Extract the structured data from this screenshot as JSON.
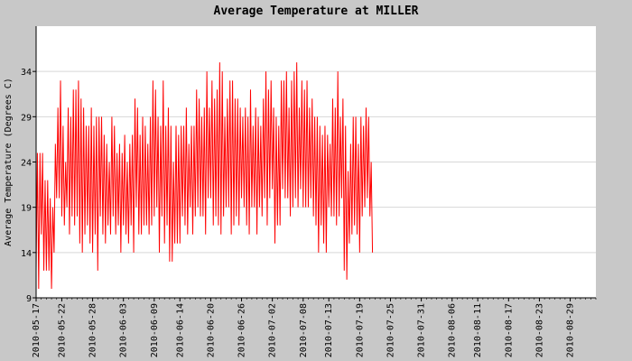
{
  "chart_data": {
    "type": "line",
    "title": "Average Temperature at MILLER",
    "xlabel": "",
    "ylabel": "Average Temperature (Degrees C)",
    "ylim": [
      9,
      39
    ],
    "yticks": [
      9,
      14,
      19,
      24,
      29,
      34
    ],
    "xlim": [
      "2010-05-17",
      "2010-09-03"
    ],
    "xticks": [
      "2010-05-17",
      "2010-05-22",
      "2010-05-28",
      "2010-06-03",
      "2010-06-09",
      "2010-06-14",
      "2010-06-20",
      "2010-06-26",
      "2010-07-02",
      "2010-07-08",
      "2010-07-13",
      "2010-07-19",
      "2010-07-25",
      "2010-07-31",
      "2010-08-06",
      "2010-08-11",
      "2010-08-17",
      "2010-08-23",
      "2010-08-29"
    ],
    "grid": true,
    "line_color": "#ff0000",
    "series": [
      {
        "name": "",
        "points_per_day": 4,
        "values": [
          12,
          25,
          10,
          25,
          16,
          25,
          12,
          22,
          12,
          22,
          12,
          20,
          10,
          19,
          14,
          26,
          20,
          30,
          20,
          33,
          18,
          28,
          17,
          24,
          19,
          30,
          16,
          29,
          18,
          32,
          17,
          32,
          18,
          33,
          15,
          31,
          14,
          30,
          16,
          28,
          17,
          28,
          15,
          30,
          14,
          28,
          16,
          29,
          12,
          29,
          18,
          29,
          16,
          27,
          15,
          26,
          17,
          24,
          16,
          29,
          18,
          28,
          16,
          25,
          17,
          26,
          14,
          25,
          17,
          27,
          16,
          24,
          15,
          26,
          17,
          27,
          14,
          31,
          19,
          30,
          16,
          27,
          16,
          29,
          17,
          28,
          17,
          26,
          16,
          29,
          17,
          33,
          18,
          32,
          19,
          29,
          14,
          28,
          18,
          33,
          15,
          28,
          17,
          30,
          13,
          28,
          13,
          24,
          15,
          28,
          15,
          27,
          15,
          28,
          18,
          28,
          17,
          30,
          16,
          26,
          19,
          28,
          16,
          28,
          18,
          32,
          19,
          31,
          18,
          29,
          18,
          30,
          16,
          34,
          20,
          30,
          20,
          33,
          17,
          31,
          18,
          32,
          17,
          35,
          16,
          34,
          18,
          29,
          19,
          31,
          19,
          33,
          16,
          33,
          17,
          31,
          18,
          31,
          17,
          30,
          20,
          29,
          19,
          30,
          17,
          29,
          16,
          32,
          19,
          28,
          19,
          30,
          16,
          29,
          19,
          28,
          18,
          31,
          20,
          34,
          17,
          32,
          20,
          33,
          21,
          30,
          15,
          29,
          17,
          28,
          17,
          33,
          21,
          33,
          20,
          34,
          20,
          30,
          18,
          33,
          19,
          34,
          20,
          35,
          19,
          30,
          21,
          33,
          19,
          32,
          19,
          33,
          19,
          30,
          20,
          31,
          18,
          29,
          17,
          29,
          14,
          28,
          17,
          27,
          15,
          28,
          14,
          27,
          19,
          26,
          18,
          31,
          18,
          30,
          17,
          34,
          18,
          29,
          20,
          31,
          12,
          28,
          11,
          23,
          15,
          26,
          16,
          29,
          17,
          29,
          16,
          26,
          14,
          29,
          18,
          28,
          19,
          30,
          20,
          29,
          18,
          24,
          14
        ]
      }
    ]
  }
}
